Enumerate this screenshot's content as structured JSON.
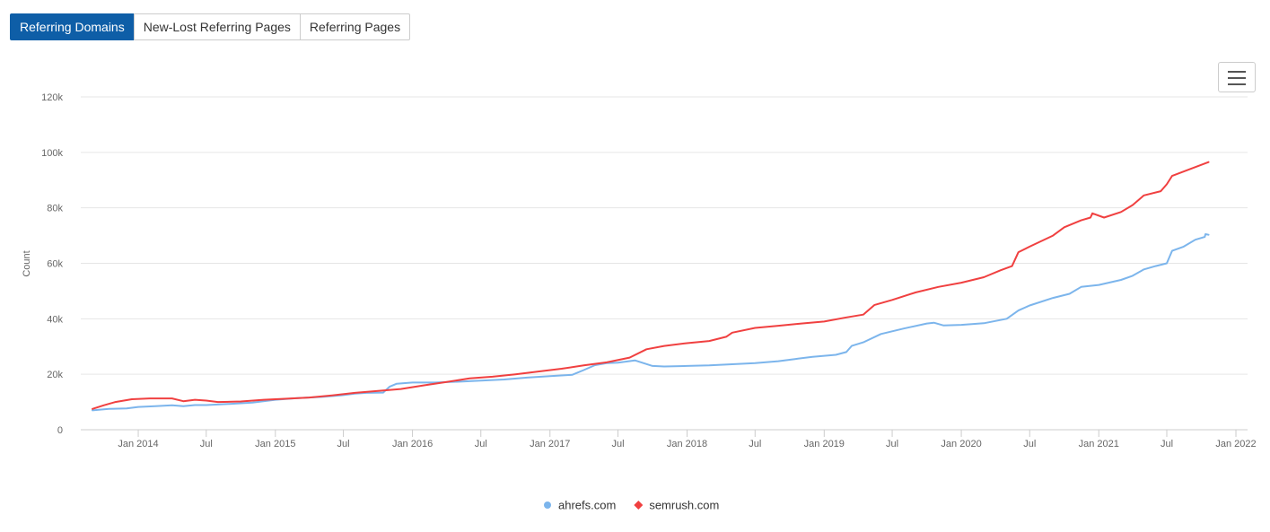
{
  "tabs": [
    {
      "label": "Referring Domains",
      "active": true
    },
    {
      "label": "New-Lost Referring Pages",
      "active": false
    },
    {
      "label": "Referring Pages",
      "active": false
    }
  ],
  "menu": {
    "icon": "hamburger-menu-icon"
  },
  "chart_data": {
    "type": "line",
    "title": "",
    "xlabel": "",
    "ylabel": "Count",
    "grid": true,
    "legend_position": "bottom-center",
    "ylim": [
      0,
      120000
    ],
    "xlim": [
      "2013-08-01",
      "2022-02-01"
    ],
    "y_ticks": [
      {
        "value": 0,
        "label": "0"
      },
      {
        "value": 20000,
        "label": "20k"
      },
      {
        "value": 40000,
        "label": "40k"
      },
      {
        "value": 60000,
        "label": "60k"
      },
      {
        "value": 80000,
        "label": "80k"
      },
      {
        "value": 100000,
        "label": "100k"
      },
      {
        "value": 120000,
        "label": "120k"
      }
    ],
    "x_ticks": [
      {
        "date": "2014-01-01",
        "label": "Jan 2014"
      },
      {
        "date": "2014-07-01",
        "label": "Jul"
      },
      {
        "date": "2015-01-01",
        "label": "Jan 2015"
      },
      {
        "date": "2015-07-01",
        "label": "Jul"
      },
      {
        "date": "2016-01-01",
        "label": "Jan 2016"
      },
      {
        "date": "2016-07-01",
        "label": "Jul"
      },
      {
        "date": "2017-01-01",
        "label": "Jan 2017"
      },
      {
        "date": "2017-07-01",
        "label": "Jul"
      },
      {
        "date": "2018-01-01",
        "label": "Jan 2018"
      },
      {
        "date": "2018-07-01",
        "label": "Jul"
      },
      {
        "date": "2019-01-01",
        "label": "Jan 2019"
      },
      {
        "date": "2019-07-01",
        "label": "Jul"
      },
      {
        "date": "2020-01-01",
        "label": "Jan 2020"
      },
      {
        "date": "2020-07-01",
        "label": "Jul"
      },
      {
        "date": "2021-01-01",
        "label": "Jan 2021"
      },
      {
        "date": "2021-07-01",
        "label": "Jul"
      },
      {
        "date": "2022-01-01",
        "label": "Jan 2022"
      }
    ],
    "series": [
      {
        "name": "ahrefs.com",
        "color": "#7cb5ec",
        "marker": "circle",
        "points": [
          [
            "2013-09-01",
            7000
          ],
          [
            "2013-10-15",
            7500
          ],
          [
            "2013-12-01",
            7700
          ],
          [
            "2014-01-01",
            8200
          ],
          [
            "2014-02-15",
            8500
          ],
          [
            "2014-04-01",
            8800
          ],
          [
            "2014-05-01",
            8500
          ],
          [
            "2014-06-01",
            8900
          ],
          [
            "2014-07-01",
            8900
          ],
          [
            "2014-09-01",
            9300
          ],
          [
            "2014-11-01",
            9800
          ],
          [
            "2015-01-01",
            10800
          ],
          [
            "2015-03-01",
            11400
          ],
          [
            "2015-05-01",
            11800
          ],
          [
            "2015-07-01",
            12500
          ],
          [
            "2015-08-01",
            13000
          ],
          [
            "2015-09-01",
            13300
          ],
          [
            "2015-10-15",
            13400
          ],
          [
            "2015-11-01",
            15500
          ],
          [
            "2015-11-20",
            16600
          ],
          [
            "2016-01-01",
            17000
          ],
          [
            "2016-03-01",
            17000
          ],
          [
            "2016-05-01",
            17300
          ],
          [
            "2016-07-01",
            17700
          ],
          [
            "2016-09-01",
            18100
          ],
          [
            "2016-11-01",
            18800
          ],
          [
            "2017-01-01",
            19300
          ],
          [
            "2017-03-01",
            19800
          ],
          [
            "2017-04-01",
            21500
          ],
          [
            "2017-05-01",
            23300
          ],
          [
            "2017-06-01",
            24000
          ],
          [
            "2017-07-01",
            24200
          ],
          [
            "2017-08-15",
            25000
          ],
          [
            "2017-10-01",
            23000
          ],
          [
            "2017-11-01",
            22800
          ],
          [
            "2018-01-01",
            23000
          ],
          [
            "2018-03-01",
            23200
          ],
          [
            "2018-05-01",
            23600
          ],
          [
            "2018-07-01",
            24000
          ],
          [
            "2018-09-01",
            24700
          ],
          [
            "2018-10-15",
            25500
          ],
          [
            "2018-12-01",
            26300
          ],
          [
            "2019-02-01",
            27000
          ],
          [
            "2019-03-01",
            28000
          ],
          [
            "2019-03-15",
            30200
          ],
          [
            "2019-04-15",
            31500
          ],
          [
            "2019-06-01",
            34500
          ],
          [
            "2019-08-01",
            36500
          ],
          [
            "2019-10-01",
            38300
          ],
          [
            "2019-10-20",
            38600
          ],
          [
            "2019-11-15",
            37600
          ],
          [
            "2020-01-01",
            37800
          ],
          [
            "2020-03-01",
            38400
          ],
          [
            "2020-05-01",
            40000
          ],
          [
            "2020-06-01",
            43000
          ],
          [
            "2020-07-01",
            44800
          ],
          [
            "2020-09-01",
            47500
          ],
          [
            "2020-10-15",
            49000
          ],
          [
            "2020-11-15",
            51500
          ],
          [
            "2021-01-01",
            52200
          ],
          [
            "2021-03-01",
            54000
          ],
          [
            "2021-04-01",
            55500
          ],
          [
            "2021-05-01",
            57800
          ],
          [
            "2021-06-01",
            59000
          ],
          [
            "2021-07-01",
            60000
          ],
          [
            "2021-07-15",
            64500
          ],
          [
            "2021-08-15",
            66000
          ],
          [
            "2021-09-15",
            68500
          ],
          [
            "2021-10-10",
            69500
          ],
          [
            "2021-10-12",
            70500
          ],
          [
            "2021-10-20",
            70300
          ]
        ]
      },
      {
        "name": "semrush.com",
        "color": "#f04040",
        "marker": "diamond",
        "points": [
          [
            "2013-09-01",
            7500
          ],
          [
            "2013-10-01",
            8800
          ],
          [
            "2013-11-01",
            10000
          ],
          [
            "2013-12-15",
            11000
          ],
          [
            "2014-02-01",
            11300
          ],
          [
            "2014-04-01",
            11300
          ],
          [
            "2014-05-01",
            10300
          ],
          [
            "2014-06-01",
            10800
          ],
          [
            "2014-07-01",
            10500
          ],
          [
            "2014-08-01",
            10000
          ],
          [
            "2014-10-01",
            10200
          ],
          [
            "2014-12-01",
            10800
          ],
          [
            "2015-02-01",
            11200
          ],
          [
            "2015-04-01",
            11600
          ],
          [
            "2015-06-01",
            12400
          ],
          [
            "2015-08-01",
            13300
          ],
          [
            "2015-10-01",
            14000
          ],
          [
            "2015-12-01",
            14700
          ],
          [
            "2016-02-01",
            16000
          ],
          [
            "2016-04-01",
            17200
          ],
          [
            "2016-06-01",
            18500
          ],
          [
            "2016-08-01",
            19100
          ],
          [
            "2016-10-01",
            20000
          ],
          [
            "2016-12-01",
            21000
          ],
          [
            "2017-02-01",
            22000
          ],
          [
            "2017-04-01",
            23200
          ],
          [
            "2017-06-01",
            24300
          ],
          [
            "2017-08-01",
            26000
          ],
          [
            "2017-09-15",
            29000
          ],
          [
            "2017-11-01",
            30200
          ],
          [
            "2018-01-01",
            31200
          ],
          [
            "2018-03-01",
            32000
          ],
          [
            "2018-04-15",
            33500
          ],
          [
            "2018-05-01",
            35000
          ],
          [
            "2018-07-01",
            36700
          ],
          [
            "2018-09-01",
            37500
          ],
          [
            "2018-11-01",
            38300
          ],
          [
            "2019-01-01",
            39000
          ],
          [
            "2019-03-01",
            40500
          ],
          [
            "2019-04-15",
            41500
          ],
          [
            "2019-05-15",
            45000
          ],
          [
            "2019-07-01",
            46800
          ],
          [
            "2019-09-01",
            49500
          ],
          [
            "2019-11-01",
            51500
          ],
          [
            "2020-01-01",
            53000
          ],
          [
            "2020-03-01",
            55000
          ],
          [
            "2020-04-15",
            57500
          ],
          [
            "2020-05-15",
            59000
          ],
          [
            "2020-06-01",
            64000
          ],
          [
            "2020-07-01",
            66000
          ],
          [
            "2020-09-01",
            70000
          ],
          [
            "2020-10-01",
            73000
          ],
          [
            "2020-11-15",
            75500
          ],
          [
            "2020-12-10",
            76500
          ],
          [
            "2020-12-15",
            78000
          ],
          [
            "2021-01-15",
            76500
          ],
          [
            "2021-03-01",
            78500
          ],
          [
            "2021-04-01",
            81000
          ],
          [
            "2021-05-01",
            84500
          ],
          [
            "2021-06-15",
            86000
          ],
          [
            "2021-07-01",
            88500
          ],
          [
            "2021-07-15",
            91500
          ],
          [
            "2021-09-01",
            94000
          ],
          [
            "2021-10-20",
            96500
          ]
        ]
      }
    ]
  }
}
